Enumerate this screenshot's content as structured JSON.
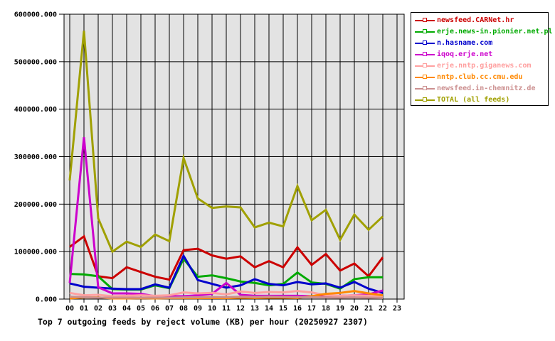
{
  "title": "Top 7 outgoing feeds by reject volume (KB) per hour (20250927 2307)",
  "chart_data": {
    "type": "line",
    "title": "Top 7 outgoing feeds by reject volume (KB) per hour (20250927 2307)",
    "x_tick_labels": [
      "00",
      "01",
      "02",
      "03",
      "04",
      "05",
      "06",
      "07",
      "08",
      "09",
      "10",
      "11",
      "12",
      "13",
      "14",
      "15",
      "16",
      "17",
      "18",
      "19",
      "20",
      "21",
      "22",
      "23"
    ],
    "y_tick_labels": [
      "0.000",
      "100000.000",
      "200000.000",
      "300000.000",
      "400000.000",
      "500000.000",
      "600000.000"
    ],
    "ylim": [
      0,
      600000
    ],
    "y_unit": "KB",
    "grid": true,
    "plot_bg": "#e3e3e3",
    "grid_color": "#000000",
    "legend_position": "top-right",
    "hours_with_data": "00-22",
    "series": [
      {
        "name": "newsfeed.CARNet.hr",
        "id": "newsfeed-carnet-hr",
        "color": "#cc0000",
        "values": [
          110000,
          132000,
          48000,
          44000,
          67000,
          57000,
          47000,
          41000,
          103000,
          106000,
          92000,
          85000,
          90000,
          67000,
          80000,
          67000,
          109000,
          72000,
          95000,
          60000,
          75000,
          48000,
          88000
        ]
      },
      {
        "name": "erje.news-in.pionier.net.pl",
        "id": "erje-news-in-pionier-net-pl",
        "color": "#00aa00",
        "values": [
          53000,
          52000,
          48000,
          21000,
          20000,
          20000,
          29000,
          23000,
          85000,
          47000,
          50000,
          44000,
          37000,
          34000,
          29000,
          32000,
          56000,
          35000,
          32000,
          22000,
          42000,
          46000,
          46000
        ]
      },
      {
        "name": "n.hasname.com",
        "id": "n-hasname-com",
        "color": "#0000cc",
        "values": [
          33000,
          26000,
          24000,
          22000,
          21000,
          21000,
          31000,
          24000,
          91000,
          40000,
          32000,
          24000,
          29000,
          42000,
          32000,
          29000,
          36000,
          31000,
          33000,
          24000,
          36000,
          22000,
          13000
        ]
      },
      {
        "name": "iqoq.erje.net",
        "id": "iqoq-erje-net",
        "color": "#cc00cc",
        "values": [
          34000,
          341000,
          25000,
          12000,
          12000,
          11000,
          6000,
          6000,
          6000,
          8000,
          11000,
          34000,
          9000,
          7000,
          7000,
          7000,
          7000,
          6000,
          7000,
          7000,
          8000,
          10000,
          18000
        ]
      },
      {
        "name": "erje.nntp.giganews.com",
        "id": "erje-nntp-giganews-com",
        "color": "#ffa0a0",
        "values": [
          13000,
          8000,
          9000,
          6000,
          7000,
          8000,
          7000,
          8000,
          14000,
          12000,
          13000,
          10000,
          16000,
          13000,
          15000,
          14000,
          17000,
          14000,
          8000,
          7000,
          8000,
          7000,
          6000
        ]
      },
      {
        "name": "nntp.club.cc.cmu.edu",
        "id": "nntp-club-cc-cmu-edu",
        "color": "#ff8800",
        "values": [
          1500,
          3500,
          3500,
          1500,
          1500,
          2000,
          1500,
          2000,
          2000,
          2000,
          2500,
          2000,
          3000,
          2500,
          3000,
          3000,
          2500,
          6000,
          11000,
          13000,
          17000,
          12000,
          8000
        ]
      },
      {
        "name": "newsfeed.in-chemnitz.de",
        "id": "newsfeed-in-chemnitz-de",
        "color": "#cc9090",
        "values": [
          5000,
          4000,
          3000,
          3000,
          3000,
          3000,
          3000,
          3000,
          3500,
          4000,
          4500,
          4000,
          5000,
          4500,
          5000,
          4500,
          4000,
          4000,
          3500,
          3000,
          3500,
          3000,
          2500
        ]
      },
      {
        "name": "TOTAL (all feeds)",
        "id": "total-all-feeds",
        "color": "#a0a000",
        "values": [
          250000,
          565000,
          170000,
          100000,
          121000,
          110000,
          136000,
          122000,
          297000,
          212000,
          192000,
          195000,
          193000,
          151000,
          161000,
          153000,
          238000,
          166000,
          188000,
          125000,
          178000,
          146000,
          174000
        ]
      }
    ]
  }
}
